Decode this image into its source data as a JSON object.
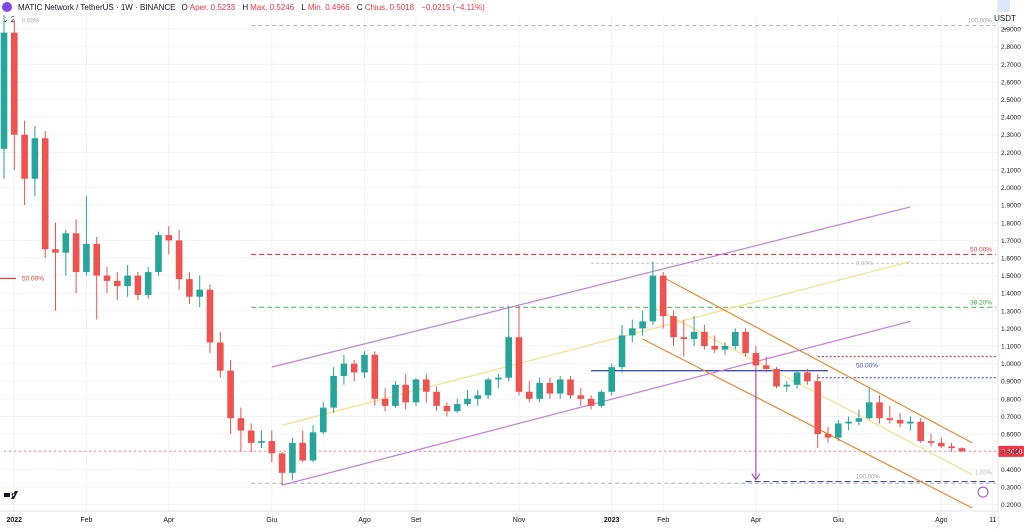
{
  "header": {
    "symbol": "MATIC Network / TetherUS · 1W · BINANCE",
    "open_label": "O",
    "open_value": "Aper. 0.5233",
    "high_label": "H",
    "high_value": "Max. 0.5246",
    "low_label": "L",
    "low_value": "Min. 0.4966",
    "close_label": "C",
    "close_value": "Chius. 0.5018",
    "change_value": "−0.0215 (−4.11%)",
    "collapse": "⌄ 2",
    "currency": "USDT ⌄"
  },
  "colors": {
    "up": "#26a69a",
    "down": "#ef5350",
    "channel": "#c77dde",
    "orange": "#f0892a",
    "red_dash": "#e53935",
    "green_dash": "#66bb6a",
    "blue": "#3f51b5",
    "price_tag": "#f23645"
  },
  "annotations": {
    "fib_top": "100.00%",
    "fib_50_left": "50.00%",
    "fib_0_left": "0.00%",
    "fib_50_right": "50.00%",
    "fib_38_right": "38.20%",
    "fib_50_blue": "50.00%",
    "fib_100_bottom": "100.00%",
    "fib_0_mid": "0.00%",
    "fib_100_small": "1.00%",
    "last_price": "0.5018"
  },
  "chart_data": {
    "type": "candlestick",
    "x_ticks": [
      "2022",
      "Feb",
      "Apr",
      "Giu",
      "Ago",
      "Set",
      "Nov",
      "2023",
      "Feb",
      "Apr",
      "Giu",
      "Ago",
      "11"
    ],
    "y_ticks": [
      "2.9000",
      "2.8000",
      "2.7000",
      "2.6000",
      "2.5000",
      "2.4000",
      "2.3000",
      "2.2000",
      "2.1000",
      "2.0000",
      "1.9000",
      "1.8000",
      "1.7000",
      "1.6000",
      "1.5000",
      "1.4000",
      "1.3000",
      "1.2000",
      "1.1000",
      "1.0000",
      "0.9000",
      "0.8000",
      "0.7000",
      "0.6000",
      "0.5000",
      "0.4000",
      "0.3000",
      "0.2000"
    ],
    "ylim": [
      0.18,
      2.98
    ],
    "x_range_weeks": [
      0,
      98
    ],
    "candles": [
      {
        "w": 0,
        "o": 2.22,
        "h": 2.98,
        "l": 2.05,
        "c": 2.88
      },
      {
        "w": 1,
        "o": 2.88,
        "h": 2.95,
        "l": 2.1,
        "c": 2.3
      },
      {
        "w": 2,
        "o": 2.3,
        "h": 2.38,
        "l": 1.9,
        "c": 2.05
      },
      {
        "w": 3,
        "o": 2.05,
        "h": 2.35,
        "l": 1.95,
        "c": 2.28
      },
      {
        "w": 4,
        "o": 2.28,
        "h": 2.32,
        "l": 1.6,
        "c": 1.65
      },
      {
        "w": 5,
        "o": 1.65,
        "h": 1.8,
        "l": 1.3,
        "c": 1.63
      },
      {
        "w": 6,
        "o": 1.63,
        "h": 1.76,
        "l": 1.5,
        "c": 1.74
      },
      {
        "w": 7,
        "o": 1.74,
        "h": 1.82,
        "l": 1.4,
        "c": 1.52
      },
      {
        "w": 8,
        "o": 1.52,
        "h": 1.95,
        "l": 1.5,
        "c": 1.68
      },
      {
        "w": 9,
        "o": 1.68,
        "h": 1.72,
        "l": 1.25,
        "c": 1.5
      },
      {
        "w": 10,
        "o": 1.5,
        "h": 1.55,
        "l": 1.4,
        "c": 1.47
      },
      {
        "w": 11,
        "o": 1.47,
        "h": 1.52,
        "l": 1.36,
        "c": 1.44
      },
      {
        "w": 12,
        "o": 1.44,
        "h": 1.56,
        "l": 1.38,
        "c": 1.5
      },
      {
        "w": 13,
        "o": 1.5,
        "h": 1.52,
        "l": 1.36,
        "c": 1.39
      },
      {
        "w": 14,
        "o": 1.39,
        "h": 1.55,
        "l": 1.37,
        "c": 1.52
      },
      {
        "w": 15,
        "o": 1.52,
        "h": 1.75,
        "l": 1.5,
        "c": 1.73
      },
      {
        "w": 16,
        "o": 1.73,
        "h": 1.78,
        "l": 1.62,
        "c": 1.7
      },
      {
        "w": 17,
        "o": 1.7,
        "h": 1.76,
        "l": 1.42,
        "c": 1.48
      },
      {
        "w": 18,
        "o": 1.48,
        "h": 1.52,
        "l": 1.34,
        "c": 1.38
      },
      {
        "w": 19,
        "o": 1.38,
        "h": 1.5,
        "l": 1.32,
        "c": 1.42
      },
      {
        "w": 20,
        "o": 1.42,
        "h": 1.45,
        "l": 1.06,
        "c": 1.12
      },
      {
        "w": 21,
        "o": 1.12,
        "h": 1.18,
        "l": 0.92,
        "c": 0.96
      },
      {
        "w": 22,
        "o": 0.96,
        "h": 1.02,
        "l": 0.6,
        "c": 0.69
      },
      {
        "w": 23,
        "o": 0.69,
        "h": 0.75,
        "l": 0.5,
        "c": 0.62
      },
      {
        "w": 24,
        "o": 0.62,
        "h": 0.66,
        "l": 0.5,
        "c": 0.55
      },
      {
        "w": 25,
        "o": 0.55,
        "h": 0.62,
        "l": 0.52,
        "c": 0.56
      },
      {
        "w": 26,
        "o": 0.56,
        "h": 0.62,
        "l": 0.44,
        "c": 0.49
      },
      {
        "w": 27,
        "o": 0.49,
        "h": 0.5,
        "l": 0.31,
        "c": 0.38
      },
      {
        "w": 28,
        "o": 0.38,
        "h": 0.58,
        "l": 0.34,
        "c": 0.55
      },
      {
        "w": 29,
        "o": 0.55,
        "h": 0.62,
        "l": 0.44,
        "c": 0.45
      },
      {
        "w": 30,
        "o": 0.45,
        "h": 0.65,
        "l": 0.44,
        "c": 0.61
      },
      {
        "w": 31,
        "o": 0.61,
        "h": 0.78,
        "l": 0.6,
        "c": 0.75
      },
      {
        "w": 32,
        "o": 0.75,
        "h": 0.98,
        "l": 0.72,
        "c": 0.93
      },
      {
        "w": 33,
        "o": 0.93,
        "h": 1.05,
        "l": 0.88,
        "c": 1.0
      },
      {
        "w": 34,
        "o": 1.0,
        "h": 1.02,
        "l": 0.9,
        "c": 0.95
      },
      {
        "w": 35,
        "o": 0.95,
        "h": 1.07,
        "l": 0.92,
        "c": 1.05
      },
      {
        "w": 36,
        "o": 1.05,
        "h": 1.07,
        "l": 0.76,
        "c": 0.8
      },
      {
        "w": 37,
        "o": 0.8,
        "h": 0.86,
        "l": 0.73,
        "c": 0.76
      },
      {
        "w": 38,
        "o": 0.76,
        "h": 0.9,
        "l": 0.75,
        "c": 0.88
      },
      {
        "w": 39,
        "o": 0.88,
        "h": 0.94,
        "l": 0.74,
        "c": 0.78
      },
      {
        "w": 40,
        "o": 0.78,
        "h": 0.92,
        "l": 0.76,
        "c": 0.91
      },
      {
        "w": 41,
        "o": 0.91,
        "h": 0.94,
        "l": 0.78,
        "c": 0.84
      },
      {
        "w": 42,
        "o": 0.84,
        "h": 0.87,
        "l": 0.73,
        "c": 0.76
      },
      {
        "w": 43,
        "o": 0.76,
        "h": 0.78,
        "l": 0.7,
        "c": 0.73
      },
      {
        "w": 44,
        "o": 0.73,
        "h": 0.8,
        "l": 0.72,
        "c": 0.77
      },
      {
        "w": 45,
        "o": 0.77,
        "h": 0.85,
        "l": 0.76,
        "c": 0.8
      },
      {
        "w": 46,
        "o": 0.8,
        "h": 0.85,
        "l": 0.76,
        "c": 0.82
      },
      {
        "w": 47,
        "o": 0.82,
        "h": 0.92,
        "l": 0.8,
        "c": 0.91
      },
      {
        "w": 48,
        "o": 0.91,
        "h": 0.94,
        "l": 0.86,
        "c": 0.92
      },
      {
        "w": 49,
        "o": 0.92,
        "h": 1.33,
        "l": 0.9,
        "c": 1.15
      },
      {
        "w": 50,
        "o": 1.15,
        "h": 1.33,
        "l": 0.82,
        "c": 0.84
      },
      {
        "w": 51,
        "o": 0.84,
        "h": 0.9,
        "l": 0.78,
        "c": 0.8
      },
      {
        "w": 52,
        "o": 0.8,
        "h": 0.92,
        "l": 0.78,
        "c": 0.89
      },
      {
        "w": 53,
        "o": 0.89,
        "h": 0.92,
        "l": 0.8,
        "c": 0.83
      },
      {
        "w": 54,
        "o": 0.83,
        "h": 0.93,
        "l": 0.8,
        "c": 0.91
      },
      {
        "w": 55,
        "o": 0.91,
        "h": 0.93,
        "l": 0.8,
        "c": 0.82
      },
      {
        "w": 56,
        "o": 0.82,
        "h": 0.86,
        "l": 0.76,
        "c": 0.8
      },
      {
        "w": 57,
        "o": 0.8,
        "h": 0.82,
        "l": 0.74,
        "c": 0.76
      },
      {
        "w": 58,
        "o": 0.76,
        "h": 0.85,
        "l": 0.75,
        "c": 0.84
      },
      {
        "w": 59,
        "o": 0.84,
        "h": 1.0,
        "l": 0.82,
        "c": 0.98
      },
      {
        "w": 60,
        "o": 0.98,
        "h": 1.22,
        "l": 0.95,
        "c": 1.16
      },
      {
        "w": 61,
        "o": 1.16,
        "h": 1.25,
        "l": 1.12,
        "c": 1.2
      },
      {
        "w": 62,
        "o": 1.2,
        "h": 1.3,
        "l": 1.16,
        "c": 1.24
      },
      {
        "w": 63,
        "o": 1.24,
        "h": 1.58,
        "l": 1.22,
        "c": 1.5
      },
      {
        "w": 64,
        "o": 1.5,
        "h": 1.52,
        "l": 1.2,
        "c": 1.27
      },
      {
        "w": 65,
        "o": 1.27,
        "h": 1.3,
        "l": 1.1,
        "c": 1.15
      },
      {
        "w": 66,
        "o": 1.15,
        "h": 1.25,
        "l": 1.04,
        "c": 1.14
      },
      {
        "w": 67,
        "o": 1.14,
        "h": 1.27,
        "l": 1.1,
        "c": 1.18
      },
      {
        "w": 68,
        "o": 1.18,
        "h": 1.22,
        "l": 1.08,
        "c": 1.1
      },
      {
        "w": 69,
        "o": 1.1,
        "h": 1.16,
        "l": 1.06,
        "c": 1.08
      },
      {
        "w": 70,
        "o": 1.08,
        "h": 1.12,
        "l": 1.05,
        "c": 1.1
      },
      {
        "w": 71,
        "o": 1.1,
        "h": 1.2,
        "l": 1.08,
        "c": 1.18
      },
      {
        "w": 72,
        "o": 1.18,
        "h": 1.2,
        "l": 1.04,
        "c": 1.06
      },
      {
        "w": 73,
        "o": 1.06,
        "h": 1.1,
        "l": 0.96,
        "c": 0.99
      },
      {
        "w": 74,
        "o": 0.99,
        "h": 1.04,
        "l": 0.95,
        "c": 0.97
      },
      {
        "w": 75,
        "o": 0.97,
        "h": 0.98,
        "l": 0.86,
        "c": 0.87
      },
      {
        "w": 76,
        "o": 0.87,
        "h": 0.9,
        "l": 0.84,
        "c": 0.88
      },
      {
        "w": 77,
        "o": 0.88,
        "h": 0.96,
        "l": 0.86,
        "c": 0.95
      },
      {
        "w": 78,
        "o": 0.95,
        "h": 0.97,
        "l": 0.88,
        "c": 0.9
      },
      {
        "w": 79,
        "o": 0.9,
        "h": 0.94,
        "l": 0.52,
        "c": 0.6
      },
      {
        "w": 80,
        "o": 0.6,
        "h": 0.64,
        "l": 0.55,
        "c": 0.58
      },
      {
        "w": 81,
        "o": 0.58,
        "h": 0.68,
        "l": 0.56,
        "c": 0.66
      },
      {
        "w": 82,
        "o": 0.66,
        "h": 0.7,
        "l": 0.62,
        "c": 0.67
      },
      {
        "w": 83,
        "o": 0.67,
        "h": 0.74,
        "l": 0.65,
        "c": 0.69
      },
      {
        "w": 84,
        "o": 0.69,
        "h": 0.86,
        "l": 0.68,
        "c": 0.78
      },
      {
        "w": 85,
        "o": 0.78,
        "h": 0.82,
        "l": 0.66,
        "c": 0.69
      },
      {
        "w": 86,
        "o": 0.69,
        "h": 0.76,
        "l": 0.66,
        "c": 0.68
      },
      {
        "w": 87,
        "o": 0.68,
        "h": 0.72,
        "l": 0.64,
        "c": 0.66
      },
      {
        "w": 88,
        "o": 0.66,
        "h": 0.7,
        "l": 0.62,
        "c": 0.67
      },
      {
        "w": 89,
        "o": 0.67,
        "h": 0.69,
        "l": 0.55,
        "c": 0.56
      },
      {
        "w": 90,
        "o": 0.56,
        "h": 0.6,
        "l": 0.53,
        "c": 0.55
      },
      {
        "w": 91,
        "o": 0.55,
        "h": 0.58,
        "l": 0.52,
        "c": 0.53
      },
      {
        "w": 92,
        "o": 0.53,
        "h": 0.55,
        "l": 0.5,
        "c": 0.52
      },
      {
        "w": 93,
        "o": 0.52,
        "h": 0.5246,
        "l": 0.4966,
        "c": 0.5018
      }
    ],
    "horizontal_levels": [
      {
        "name": "fib-top-level",
        "y": 2.92,
        "w1": 24,
        "w2": 96,
        "color": "#bdbdbd",
        "dash": "4,3"
      },
      {
        "name": "fib-50-red-level",
        "y": 1.62,
        "w1": 24,
        "w2": 96,
        "color": "#e53935",
        "dash": "5,3"
      },
      {
        "name": "fib-0-grey-level",
        "y": 1.57,
        "w1": 57,
        "w2": 96,
        "color": "#c7c7c7",
        "dash": "3,2"
      },
      {
        "name": "fib-38-green-level",
        "y": 1.32,
        "w1": 24,
        "w2": 96,
        "color": "#66bb6a",
        "dash": "5,3"
      },
      {
        "name": "red-dotted-level",
        "y": 1.04,
        "w1": 79,
        "w2": 96,
        "color": "#e53935",
        "dash": "2,2"
      },
      {
        "name": "blue-solid-level",
        "y": 0.96,
        "w1": 57,
        "w2": 80,
        "color": "#3f51b5",
        "dash": ""
      },
      {
        "name": "blue-dotted-level",
        "y": 0.92,
        "w1": 79,
        "w2": 96,
        "color": "#3f51b5",
        "dash": "2,2"
      },
      {
        "name": "pink-dotted-level",
        "y": 0.5018,
        "w1": 0,
        "w2": 96,
        "color": "#f48fb1",
        "dash": "2,3"
      },
      {
        "name": "fib-100-grey-level",
        "y": 0.32,
        "w1": 24,
        "w2": 96,
        "color": "#bdbdbd",
        "dash": "4,3"
      },
      {
        "name": "fib-100-blue-level",
        "y": 0.33,
        "w1": 72,
        "w2": 96,
        "color": "#3f51b5",
        "dash": "6,3"
      }
    ],
    "trend_lines": [
      {
        "name": "channel-upper",
        "w1": 26,
        "y1": 0.98,
        "w2": 88,
        "y2": 1.89,
        "color": "#c77dde",
        "dash": ""
      },
      {
        "name": "channel-middle",
        "w1": 27,
        "y1": 0.65,
        "w2": 88,
        "y2": 1.58,
        "color": "#f7e08a",
        "dash": ""
      },
      {
        "name": "channel-lower",
        "w1": 27,
        "y1": 0.31,
        "w2": 88,
        "y2": 1.24,
        "color": "#c77dde",
        "dash": ""
      },
      {
        "name": "down-channel-upper",
        "w1": 64,
        "y1": 1.49,
        "w2": 94,
        "y2": 0.55,
        "color": "#f0892a",
        "dash": ""
      },
      {
        "name": "down-channel-middle",
        "w1": 63,
        "y1": 1.32,
        "w2": 94,
        "y2": 0.37,
        "color": "#f7e08a",
        "dash": ""
      },
      {
        "name": "down-channel-lower",
        "w1": 62,
        "y1": 1.14,
        "w2": 94,
        "y2": 0.18,
        "color": "#f0892a",
        "dash": ""
      }
    ]
  }
}
